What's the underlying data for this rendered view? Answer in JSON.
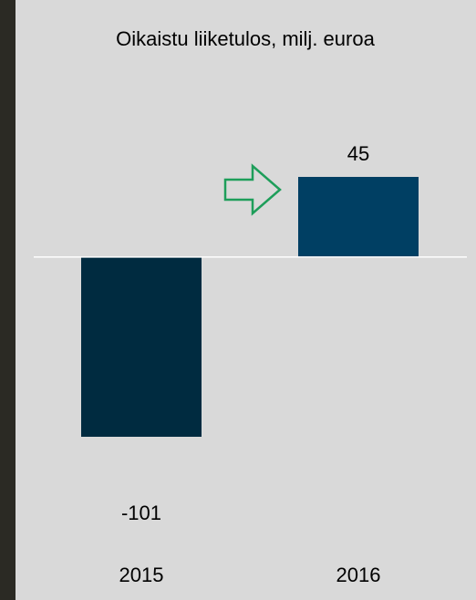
{
  "chart_data": {
    "type": "bar",
    "title": "Oikaistu liiketulos, milj. euroa",
    "xlabel": "",
    "ylabel": "",
    "categories": [
      "2015",
      "2016"
    ],
    "series": [
      {
        "values": [
          -101,
          45
        ]
      }
    ],
    "data_labels": [
      "-101",
      "45"
    ],
    "ylim": [
      -101,
      45
    ],
    "grid": false,
    "legend": "none",
    "colors": {
      "bar_2015": "#002b40",
      "bar_2016": "#003f63",
      "arrow": "#1e9e5a",
      "zero_line": "#ffffff",
      "background": "#d9d9d9",
      "frame": "#2b2a24"
    },
    "annotation_icon": "arrow-right-outline-icon"
  }
}
